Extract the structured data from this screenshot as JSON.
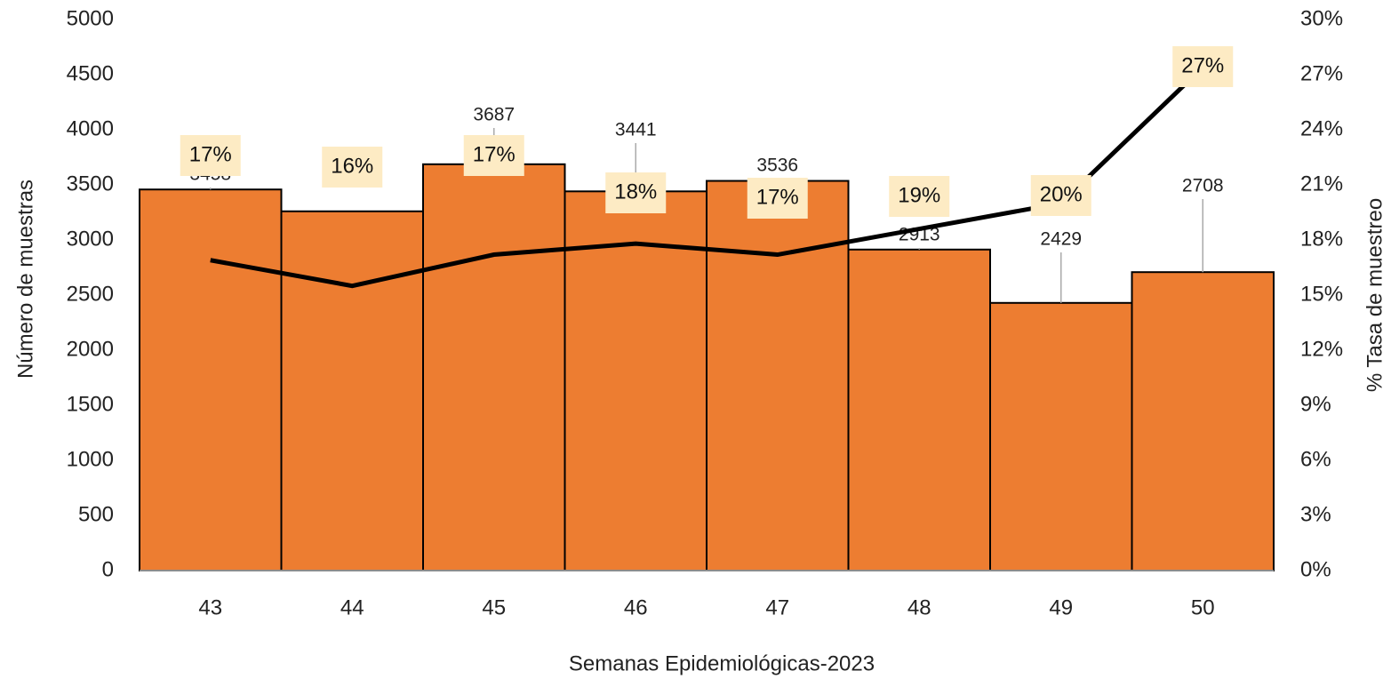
{
  "chart_data": {
    "type": "bar",
    "x_label": "Semanas Epidemiológicas-2023",
    "y_label": "Número de muestras",
    "y2_label": "% Tasa de muestreo",
    "categories": [
      "43",
      "44",
      "45",
      "46",
      "47",
      "48",
      "49",
      "50"
    ],
    "series": [
      {
        "type": "bar",
        "color": "#ED7D31",
        "values": [
          3458,
          3260,
          3687,
          3441,
          3536,
          2913,
          2429,
          2708
        ],
        "value_labels": [
          "3458",
          null,
          "3687",
          "3441",
          "3536",
          "2913",
          "2429",
          "2708"
        ]
      },
      {
        "type": "line",
        "axis": "y2",
        "color": "#000000",
        "values": [
          16.9,
          15.5,
          17.2,
          17.8,
          17.2,
          18.6,
          20.0,
          27.4
        ],
        "value_labels": [
          "17%",
          "16%",
          "17%",
          "18%",
          "17%",
          "19%",
          "20%",
          "27%"
        ]
      }
    ],
    "ylim": [
      0,
      5000
    ],
    "yticks": [
      0,
      500,
      1000,
      1500,
      2000,
      2500,
      3000,
      3500,
      4000,
      4500,
      5000
    ],
    "y2lim": [
      0,
      30
    ],
    "y2ticks": [
      {
        "value": 0,
        "label": "0%"
      },
      {
        "value": 3,
        "label": "3%"
      },
      {
        "value": 6,
        "label": "6%"
      },
      {
        "value": 9,
        "label": "9%"
      },
      {
        "value": 12,
        "label": "12%"
      },
      {
        "value": 15,
        "label": "15%"
      },
      {
        "value": 18,
        "label": "18%"
      },
      {
        "value": 21,
        "label": "21%"
      },
      {
        "value": 24,
        "label": "24%"
      },
      {
        "value": 27,
        "label": "27%"
      },
      {
        "value": 30,
        "label": "30%"
      }
    ]
  }
}
